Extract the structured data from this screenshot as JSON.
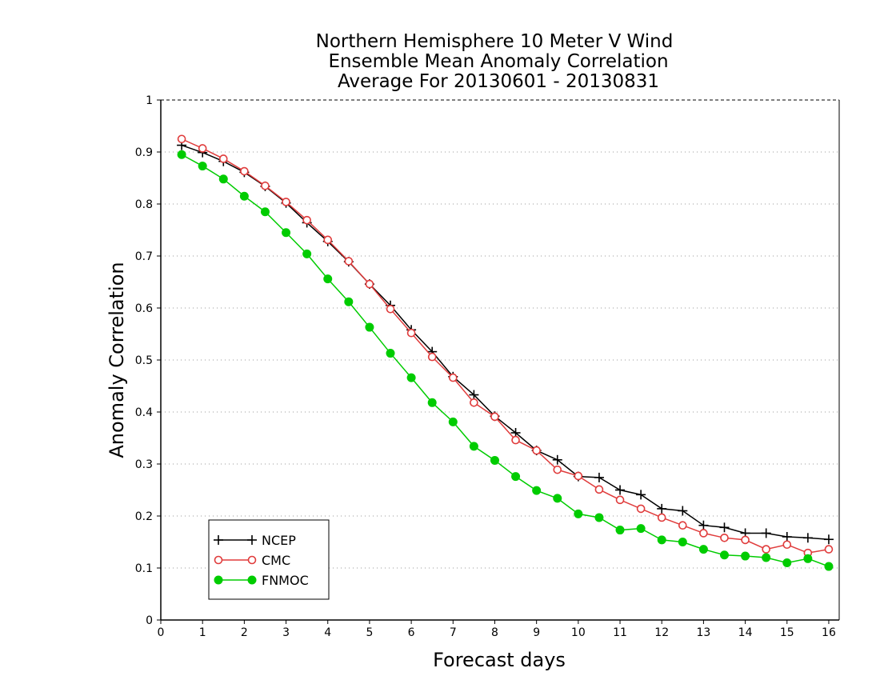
{
  "chart_data": {
    "type": "line",
    "title": [
      "Northern Hemisphere 10 Meter V Wind",
      "Ensemble Mean Anomaly Correlation",
      "Average For 20130601 - 20130831"
    ],
    "xlabel": "Forecast days",
    "ylabel": "Anomaly Correlation",
    "xlim": [
      0,
      16.25
    ],
    "ylim": [
      0,
      1
    ],
    "xticks": [
      "0",
      "1",
      "2",
      "3",
      "4",
      "5",
      "6",
      "7",
      "8",
      "9",
      "10",
      "11",
      "12",
      "13",
      "14",
      "15",
      "16"
    ],
    "yticks": [
      "0",
      "0.1",
      "0.2",
      "0.3",
      "0.4",
      "0.5",
      "0.6",
      "0.7",
      "0.8",
      "0.9",
      "1"
    ],
    "grid": "horizontal dotted",
    "legend_position": "bottom-left",
    "x": [
      0.5,
      1,
      1.5,
      2,
      2.5,
      3,
      3.5,
      4,
      4.5,
      5,
      5.5,
      6,
      6.5,
      7,
      7.5,
      8,
      8.5,
      9,
      9.5,
      10,
      10.5,
      11,
      11.5,
      12,
      12.5,
      13,
      13.5,
      14,
      14.5,
      15,
      15.5,
      16
    ],
    "series": [
      {
        "name": "NCEP",
        "color": "#000000",
        "marker": "plus",
        "values": [
          0.913,
          0.899,
          0.882,
          0.861,
          0.834,
          0.802,
          0.764,
          0.728,
          0.689,
          0.646,
          0.605,
          0.558,
          0.516,
          0.468,
          0.433,
          0.392,
          0.36,
          0.326,
          0.308,
          0.276,
          0.274,
          0.25,
          0.241,
          0.214,
          0.21,
          0.182,
          0.178,
          0.167,
          0.167,
          0.16,
          0.158,
          0.155
        ]
      },
      {
        "name": "CMC",
        "color": "#e03c3c",
        "marker": "open-circle",
        "values": [
          0.925,
          0.907,
          0.887,
          0.863,
          0.835,
          0.804,
          0.769,
          0.731,
          0.69,
          0.646,
          0.598,
          0.552,
          0.506,
          0.466,
          0.418,
          0.391,
          0.346,
          0.326,
          0.289,
          0.277,
          0.251,
          0.231,
          0.214,
          0.197,
          0.182,
          0.167,
          0.158,
          0.154,
          0.136,
          0.145,
          0.129,
          0.136
        ]
      },
      {
        "name": "FNMOC",
        "color": "#00cc00",
        "marker": "filled-circle",
        "values": [
          0.895,
          0.873,
          0.848,
          0.815,
          0.785,
          0.745,
          0.704,
          0.656,
          0.612,
          0.563,
          0.513,
          0.466,
          0.418,
          0.381,
          0.334,
          0.307,
          0.276,
          0.249,
          0.234,
          0.204,
          0.197,
          0.173,
          0.176,
          0.154,
          0.15,
          0.136,
          0.125,
          0.123,
          0.12,
          0.11,
          0.118,
          0.103
        ]
      }
    ]
  }
}
